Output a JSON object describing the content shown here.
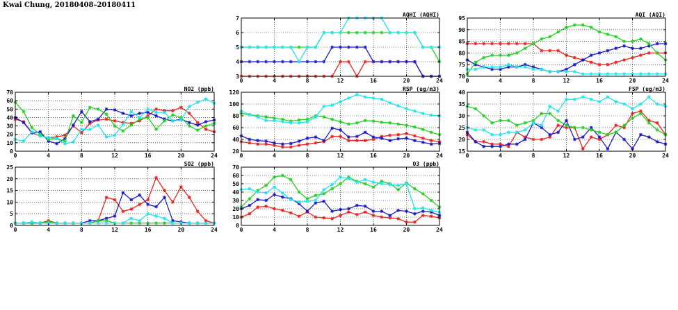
{
  "page": {
    "title": "Kwai Chung, 20180408–20180411"
  },
  "colors": {
    "red": "#e8231e",
    "blue": "#1a1ac8",
    "green": "#22d022",
    "cyan": "#22e4ee"
  },
  "chart_data": [
    {
      "id": "no2",
      "type": "line",
      "title": "NO2 (ppb)",
      "xlim": [
        0,
        24
      ],
      "xticks": [
        0,
        4,
        8,
        12,
        16,
        20,
        24
      ],
      "ylim": [
        0,
        70
      ],
      "yticks": [
        0,
        10,
        20,
        30,
        40,
        50,
        60,
        70
      ],
      "grid": true,
      "x": [
        0,
        1,
        2,
        3,
        4,
        5,
        6,
        7,
        8,
        9,
        10,
        11,
        12,
        13,
        14,
        15,
        16,
        17,
        18,
        19,
        20,
        21,
        22,
        23,
        24
      ],
      "series": [
        {
          "color": "red",
          "values": [
            38,
            35,
            22,
            18,
            16,
            17,
            19,
            30,
            22,
            33,
            37,
            38,
            36,
            34,
            33,
            36,
            42,
            50,
            48,
            48,
            52,
            45,
            34,
            26,
            23
          ]
        },
        {
          "color": "blue",
          "values": [
            40,
            34,
            22,
            23,
            12,
            9,
            15,
            31,
            47,
            35,
            38,
            50,
            49,
            45,
            42,
            45,
            46,
            42,
            38,
            36,
            38,
            34,
            31,
            35,
            37
          ]
        },
        {
          "color": "green",
          "values": [
            58,
            47,
            28,
            20,
            14,
            15,
            12,
            42,
            34,
            52,
            50,
            44,
            30,
            24,
            31,
            38,
            40,
            26,
            36,
            43,
            40,
            30,
            25,
            30,
            33
          ]
        },
        {
          "color": "cyan",
          "values": [
            14,
            12,
            23,
            18,
            16,
            15,
            9,
            11,
            26,
            26,
            31,
            17,
            19,
            32,
            47,
            40,
            50,
            46,
            46,
            36,
            37,
            53,
            58,
            62,
            57
          ]
        }
      ]
    },
    {
      "id": "so2",
      "type": "line",
      "title": "SO2 (ppb)",
      "xlim": [
        0,
        24
      ],
      "xticks": [
        0,
        4,
        8,
        12,
        16,
        20,
        24
      ],
      "ylim": [
        0,
        25
      ],
      "yticks": [
        0,
        5,
        10,
        15,
        20,
        25
      ],
      "grid": true,
      "x": [
        0,
        1,
        2,
        3,
        4,
        5,
        6,
        7,
        8,
        9,
        10,
        11,
        12,
        13,
        14,
        15,
        16,
        17,
        18,
        19,
        20,
        21,
        22,
        23,
        24
      ],
      "series": [
        {
          "color": "red",
          "values": [
            1,
            1,
            1,
            1,
            2,
            1,
            1,
            1,
            1,
            1,
            2,
            12,
            11,
            6,
            7,
            9,
            11,
            20.5,
            15,
            10,
            16.5,
            12,
            6,
            2,
            1
          ]
        },
        {
          "color": "blue",
          "values": [
            1,
            1,
            1,
            1,
            1,
            1,
            1,
            1,
            1,
            2,
            2,
            3,
            4,
            14,
            11,
            13,
            9,
            8,
            12,
            2,
            1.5,
            1,
            1,
            1,
            1
          ]
        },
        {
          "color": "green",
          "values": [
            1,
            1,
            1,
            1,
            1.5,
            1,
            1,
            1,
            1,
            1,
            2,
            2,
            1,
            1,
            1,
            1,
            1,
            1,
            1,
            1,
            1,
            1,
            1,
            1,
            1
          ]
        },
        {
          "color": "cyan",
          "values": [
            1,
            1,
            1.5,
            1,
            1,
            1,
            1,
            1,
            1,
            1,
            1,
            1,
            1,
            1,
            3,
            2,
            5,
            4,
            3,
            1,
            1,
            1,
            1,
            1,
            1
          ]
        }
      ]
    },
    {
      "id": "aqhi",
      "type": "line",
      "title": "AQHI (AQHI)",
      "xlim": [
        0,
        24
      ],
      "xticks": [
        0,
        4,
        8,
        12,
        16,
        20,
        24
      ],
      "ylim": [
        3,
        7
      ],
      "yticks": [
        3,
        4,
        5,
        6,
        7
      ],
      "grid": true,
      "x": [
        0,
        1,
        2,
        3,
        4,
        5,
        6,
        7,
        8,
        9,
        10,
        11,
        12,
        13,
        14,
        15,
        16,
        17,
        18,
        19,
        20,
        21,
        22,
        23,
        24
      ],
      "series": [
        {
          "color": "red",
          "values": [
            3,
            3,
            3,
            3,
            3,
            3,
            3,
            3,
            3,
            3,
            3,
            3,
            4,
            4,
            3,
            4,
            4,
            4,
            4,
            4,
            4,
            4,
            3,
            3,
            3
          ]
        },
        {
          "color": "blue",
          "values": [
            4,
            4,
            4,
            4,
            4,
            4,
            4,
            4,
            4,
            4,
            4,
            5,
            5,
            5,
            5,
            5,
            4,
            4,
            4,
            4,
            4,
            4,
            3,
            3,
            3
          ]
        },
        {
          "color": "green",
          "values": [
            5,
            5,
            5,
            5,
            5,
            5,
            5,
            5,
            5,
            5,
            6,
            6,
            6,
            6,
            6,
            6,
            6,
            6,
            6,
            6,
            6,
            6,
            5,
            5,
            4
          ]
        },
        {
          "color": "cyan",
          "values": [
            5,
            5,
            5,
            5,
            5,
            5,
            5,
            4,
            5,
            5,
            6,
            6,
            6,
            7,
            7,
            7,
            7,
            7,
            6,
            6,
            6,
            6,
            5,
            5,
            5
          ]
        }
      ]
    },
    {
      "id": "rsp",
      "type": "line",
      "title": "RSP (ug/m3)",
      "xlim": [
        0,
        24
      ],
      "xticks": [
        0,
        4,
        8,
        12,
        16,
        20,
        24
      ],
      "ylim": [
        20,
        120
      ],
      "yticks": [
        20,
        40,
        60,
        80,
        100,
        120
      ],
      "grid": true,
      "x": [
        0,
        1,
        2,
        3,
        4,
        5,
        6,
        7,
        8,
        9,
        10,
        11,
        12,
        13,
        14,
        15,
        16,
        17,
        18,
        19,
        20,
        21,
        22,
        23,
        24
      ],
      "series": [
        {
          "color": "red",
          "values": [
            36,
            34,
            32,
            32,
            30,
            27,
            27,
            30,
            32,
            34,
            36,
            45,
            45,
            38,
            38,
            38,
            40,
            45,
            47,
            48,
            50,
            46,
            42,
            38,
            36
          ]
        },
        {
          "color": "blue",
          "values": [
            46,
            40,
            38,
            37,
            34,
            32,
            33,
            37,
            42,
            44,
            38,
            59,
            56,
            44,
            45,
            52,
            44,
            42,
            38,
            41,
            42,
            38,
            35,
            32,
            33
          ]
        },
        {
          "color": "green",
          "values": [
            84,
            82,
            80,
            78,
            76,
            74,
            71,
            73,
            74,
            80,
            78,
            74,
            70,
            66,
            68,
            72,
            71,
            69,
            68,
            66,
            64,
            61,
            57,
            52,
            48
          ]
        },
        {
          "color": "cyan",
          "values": [
            88,
            82,
            78,
            72,
            72,
            70,
            68,
            68,
            70,
            78,
            96,
            98,
            104,
            110,
            116,
            112,
            110,
            108,
            102,
            97,
            92,
            88,
            84,
            81,
            80
          ]
        }
      ]
    },
    {
      "id": "o3",
      "type": "line",
      "title": "O3 (ppb)",
      "xlim": [
        0,
        24
      ],
      "xticks": [
        0,
        4,
        8,
        12,
        16,
        20,
        24
      ],
      "ylim": [
        0,
        70
      ],
      "yticks": [
        0,
        10,
        20,
        30,
        40,
        50,
        60,
        70
      ],
      "grid": true,
      "x": [
        0,
        1,
        2,
        3,
        4,
        5,
        6,
        7,
        8,
        9,
        10,
        11,
        12,
        13,
        14,
        15,
        16,
        17,
        18,
        19,
        20,
        21,
        22,
        23,
        24
      ],
      "series": [
        {
          "color": "red",
          "values": [
            10,
            14,
            22,
            23,
            20,
            18,
            15,
            11,
            16,
            10,
            9,
            8,
            12,
            16,
            13,
            16,
            12,
            10,
            9,
            8,
            4,
            4,
            12,
            11,
            9
          ]
        },
        {
          "color": "blue",
          "values": [
            20,
            24,
            31,
            30,
            37,
            34,
            32,
            26,
            17,
            27,
            29,
            17,
            19,
            20,
            24,
            23,
            17,
            17,
            12,
            18,
            17,
            14,
            17,
            16,
            12
          ]
        },
        {
          "color": "green",
          "values": [
            22,
            32,
            42,
            48,
            58,
            60,
            55,
            40,
            32,
            36,
            38,
            44,
            50,
            58,
            53,
            50,
            46,
            53,
            50,
            43,
            51,
            44,
            38,
            30,
            22
          ]
        },
        {
          "color": "cyan",
          "values": [
            43,
            44,
            40,
            39,
            46,
            39,
            31,
            28,
            29,
            30,
            43,
            49,
            58,
            56,
            52,
            55,
            52,
            50,
            49,
            48,
            50,
            20,
            21,
            18,
            16
          ]
        }
      ]
    },
    {
      "id": "aqi",
      "type": "line",
      "title": "AQI (AQI)",
      "xlim": [
        0,
        24
      ],
      "xticks": [
        0,
        4,
        8,
        12,
        16,
        20,
        24
      ],
      "ylim": [
        70,
        95
      ],
      "yticks": [
        70,
        75,
        80,
        85,
        90,
        95
      ],
      "grid": true,
      "x": [
        0,
        1,
        2,
        3,
        4,
        5,
        6,
        7,
        8,
        9,
        10,
        11,
        12,
        13,
        14,
        15,
        16,
        17,
        18,
        19,
        20,
        21,
        22,
        23,
        24
      ],
      "series": [
        {
          "color": "red",
          "values": [
            84,
            84,
            84,
            84,
            84,
            84,
            84,
            84,
            84,
            81,
            81,
            81,
            79,
            78,
            77,
            76,
            75,
            75,
            76,
            77,
            78,
            79,
            80,
            80,
            80
          ]
        },
        {
          "color": "blue",
          "values": [
            77,
            75,
            74,
            73,
            73,
            74,
            74,
            75,
            74,
            73,
            72,
            72,
            73,
            75,
            77,
            79,
            80,
            81,
            82,
            83,
            82,
            82,
            83,
            84,
            84
          ]
        },
        {
          "color": "green",
          "values": [
            71,
            76,
            78,
            79,
            79,
            79,
            80,
            82,
            84,
            86,
            87,
            89,
            91,
            92,
            92,
            91,
            89,
            88,
            87,
            85,
            85,
            86,
            84,
            80,
            77
          ]
        },
        {
          "color": "cyan",
          "values": [
            73,
            73,
            74,
            74,
            74,
            75,
            74,
            74,
            73,
            73,
            72,
            72,
            72,
            72,
            71,
            71,
            71,
            71,
            71,
            71,
            71,
            71,
            71,
            71,
            71
          ]
        }
      ]
    },
    {
      "id": "fsp",
      "type": "line",
      "title": "FSP (ug/m3)",
      "xlim": [
        0,
        24
      ],
      "xticks": [
        0,
        4,
        8,
        12,
        16,
        20,
        24
      ],
      "ylim": [
        15,
        40
      ],
      "yticks": [
        15,
        20,
        25,
        30,
        35,
        40
      ],
      "grid": true,
      "x": [
        0,
        1,
        2,
        3,
        4,
        5,
        6,
        7,
        8,
        9,
        10,
        11,
        12,
        13,
        14,
        15,
        16,
        17,
        18,
        19,
        20,
        21,
        22,
        23,
        24
      ],
      "series": [
        {
          "color": "red",
          "values": [
            22,
            19,
            19,
            18,
            18,
            17,
            23,
            21,
            20,
            20,
            21,
            26,
            25,
            25,
            16,
            21,
            20,
            22,
            26,
            25,
            31,
            32,
            28,
            27,
            22
          ]
        },
        {
          "color": "blue",
          "values": [
            23,
            19,
            17,
            17,
            17,
            18,
            18,
            20,
            27,
            25,
            22,
            23,
            28,
            20,
            21,
            25,
            21,
            16,
            23,
            20,
            16,
            22,
            21,
            19,
            18
          ]
        },
        {
          "color": "green",
          "values": [
            34,
            33,
            30,
            27,
            28,
            28,
            26,
            27,
            28,
            31,
            31,
            28,
            26,
            25,
            25,
            24,
            23,
            22,
            23,
            26,
            29,
            31,
            27,
            24,
            22
          ]
        },
        {
          "color": "cyan",
          "values": [
            25,
            24,
            24,
            22,
            22,
            23,
            23,
            24,
            27,
            26,
            34,
            32,
            37,
            37,
            38,
            37,
            36,
            38,
            36,
            35,
            33,
            35,
            38,
            35,
            34
          ]
        }
      ]
    }
  ]
}
